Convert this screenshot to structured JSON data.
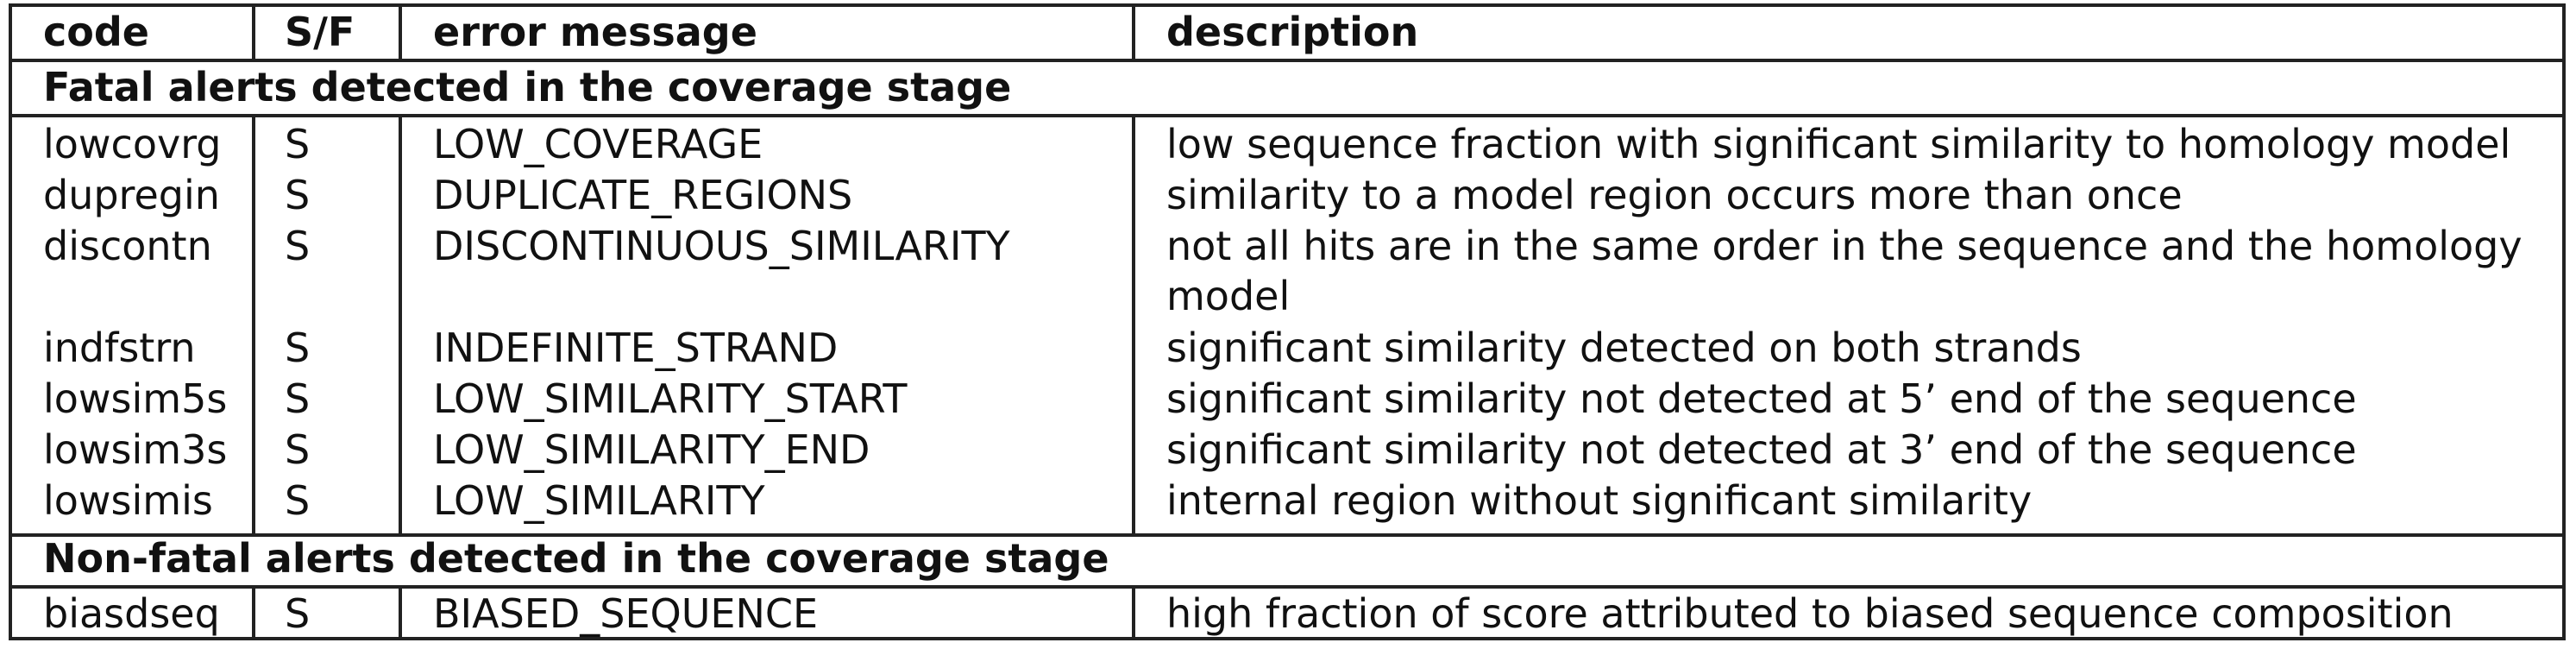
{
  "table": {
    "headers": [
      "code",
      "S/F",
      "error message",
      "description"
    ],
    "sections": [
      {
        "title": "Fatal alerts detected in the coverage stage",
        "rows": [
          {
            "code": "lowcovrg",
            "sf": "S",
            "message": "LOW_COVERAGE",
            "description": "low sequence fraction with significant similarity to homology model"
          },
          {
            "code": "dupregin",
            "sf": "S",
            "message": "DUPLICATE_REGIONS",
            "description": "similarity to a model region occurs more than once"
          },
          {
            "code": "discontn",
            "sf": "S",
            "message": "DISCONTINUOUS_SIMILARITY",
            "description": "not all hits are in the same order in the sequence and the homology model"
          },
          {
            "code": "indfstrn",
            "sf": "S",
            "message": "INDEFINITE_STRAND",
            "description": "significant similarity detected on both strands"
          },
          {
            "code": "lowsim5s",
            "sf": "S",
            "message": "LOW_SIMILARITY_START",
            "description": "significant similarity not detected at 5’ end of the sequence"
          },
          {
            "code": "lowsim3s",
            "sf": "S",
            "message": "LOW_SIMILARITY_END",
            "description": "significant similarity not detected at 3’ end of the sequence"
          },
          {
            "code": "lowsimis",
            "sf": "S",
            "message": "LOW_SIMILARITY",
            "description": "internal region without significant similarity"
          }
        ]
      },
      {
        "title": "Non-fatal alerts detected in the coverage stage",
        "rows": [
          {
            "code": "biasdseq",
            "sf": "S",
            "message": "BIASED_SEQUENCE",
            "description": "high fraction of score attributed to biased sequence composition"
          }
        ]
      }
    ]
  }
}
